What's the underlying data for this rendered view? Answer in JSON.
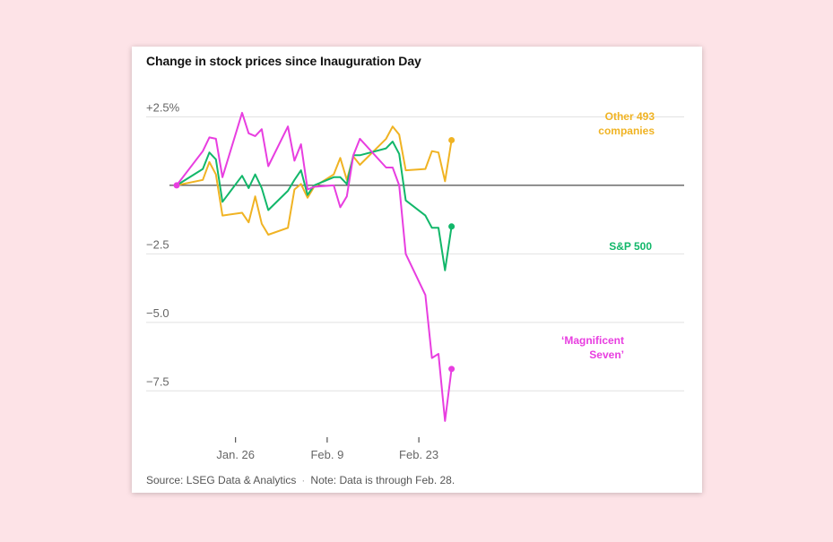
{
  "chart_data": {
    "type": "line",
    "title": "Change in stock prices since Inauguration Day",
    "ylim": [
      -8.7,
      3.3
    ],
    "y_ticks": [
      {
        "value": 2.5,
        "label": "+2.5%"
      },
      {
        "value": -2.5,
        "label": "−2.5"
      },
      {
        "value": -5.0,
        "label": "−5.0"
      },
      {
        "value": -7.5,
        "label": "−7.5"
      }
    ],
    "zero_line": true,
    "x_ticks": [
      "Jan. 26",
      "Feb. 9",
      "Feb. 23"
    ],
    "x": [
      "2025-01-17",
      "2025-01-21",
      "2025-01-22",
      "2025-01-23",
      "2025-01-24",
      "2025-01-27",
      "2025-01-28",
      "2025-01-29",
      "2025-01-30",
      "2025-01-31",
      "2025-02-03",
      "2025-02-04",
      "2025-02-05",
      "2025-02-06",
      "2025-02-07",
      "2025-02-10",
      "2025-02-11",
      "2025-02-12",
      "2025-02-13",
      "2025-02-14",
      "2025-02-18",
      "2025-02-19",
      "2025-02-20",
      "2025-02-21",
      "2025-02-24",
      "2025-02-25",
      "2025-02-26",
      "2025-02-27",
      "2025-02-28"
    ],
    "series": [
      {
        "name": "Other 493 companies",
        "color": "#f0b323",
        "values": [
          0,
          0.2,
          0.85,
          0.4,
          -1.1,
          -1.0,
          -1.35,
          -0.4,
          -1.4,
          -1.8,
          -1.55,
          -0.15,
          0.05,
          -0.45,
          -0.05,
          0.4,
          1.0,
          0.2,
          1.05,
          0.75,
          1.7,
          2.15,
          1.85,
          0.55,
          0.6,
          1.25,
          1.2,
          0.15,
          1.65
        ]
      },
      {
        "name": "S&P 500",
        "color": "#12b76a",
        "values": [
          0,
          0.6,
          1.2,
          0.95,
          -0.6,
          0.35,
          -0.1,
          0.4,
          -0.1,
          -0.9,
          -0.2,
          0.2,
          0.55,
          -0.35,
          0.0,
          0.3,
          0.3,
          0.05,
          1.1,
          1.1,
          1.35,
          1.6,
          1.15,
          -0.55,
          -1.1,
          -1.55,
          -1.55,
          -3.1,
          -1.5
        ]
      },
      {
        "name": "‘Magnificent Seven’",
        "color": "#e83ee0",
        "values": [
          0,
          1.25,
          1.75,
          1.7,
          0.3,
          2.65,
          1.9,
          1.8,
          2.05,
          0.7,
          2.15,
          0.9,
          1.5,
          -0.15,
          -0.05,
          0.0,
          -0.8,
          -0.4,
          1.1,
          1.7,
          0.65,
          0.65,
          0.0,
          -2.5,
          -4.0,
          -6.3,
          -6.15,
          -8.6,
          -6.7
        ]
      }
    ],
    "series_labels": [
      {
        "lines": [
          "Other 493",
          "companies"
        ]
      },
      {
        "lines": [
          "S&P 500"
        ]
      },
      {
        "lines": [
          "‘Magnificent",
          "Seven’"
        ]
      }
    ]
  },
  "footer": {
    "source": "Source: LSEG Data & Analytics",
    "separator": "·",
    "note": "Note: Data is through Feb. 28."
  }
}
